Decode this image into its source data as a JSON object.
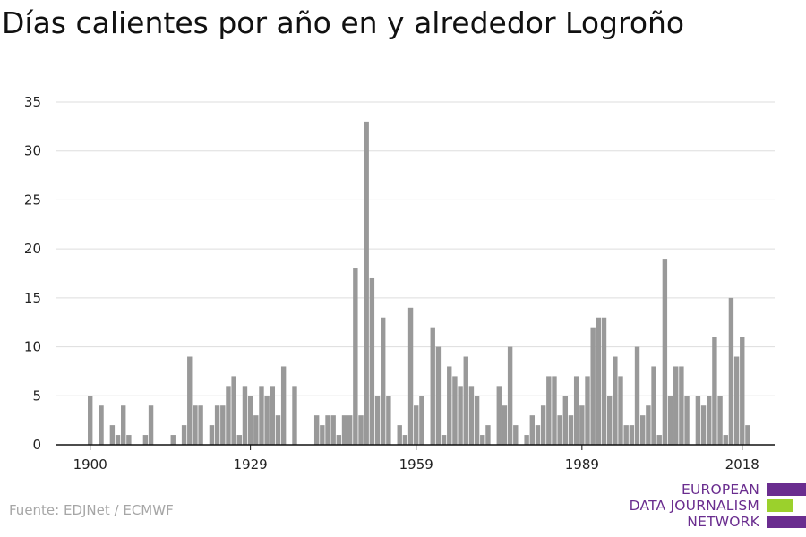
{
  "chart_data": {
    "type": "bar",
    "title": "Días calientes por año en y alrededor Logroño",
    "xlabel": "",
    "ylabel": "",
    "x_tick_labels": [
      "1900",
      "1929",
      "1959",
      "1989",
      "2018"
    ],
    "y_ticks": [
      0,
      5,
      10,
      15,
      20,
      25,
      30,
      35
    ],
    "ylim": [
      0,
      35
    ],
    "grid": true,
    "bar_color": "#999999",
    "first_year": 1900,
    "values": [
      5,
      0,
      4,
      0,
      2,
      1,
      4,
      1,
      0,
      0,
      1,
      4,
      0,
      0,
      0,
      1,
      0,
      2,
      9,
      4,
      4,
      0,
      2,
      4,
      4,
      6,
      7,
      1,
      6,
      5,
      3,
      6,
      5,
      6,
      3,
      8,
      0,
      6,
      0,
      0,
      0,
      3,
      2,
      3,
      3,
      1,
      3,
      3,
      18,
      3,
      33,
      17,
      5,
      13,
      5,
      0,
      2,
      1,
      14,
      4,
      5,
      0,
      12,
      10,
      1,
      8,
      7,
      6,
      9,
      6,
      5,
      1,
      2,
      0,
      6,
      4,
      10,
      2,
      0,
      1,
      3,
      2,
      4,
      7,
      7,
      3,
      5,
      3,
      7,
      4,
      7,
      12,
      13,
      13,
      5,
      9,
      7,
      2,
      2,
      10,
      3,
      4,
      8,
      1,
      19,
      5,
      8,
      8,
      5,
      0,
      5,
      4,
      5,
      11,
      5,
      1,
      15,
      9,
      11,
      2
    ]
  },
  "source": "Fuente: EDJNet / ECMWF",
  "logo": {
    "lines": [
      "EUROPEAN",
      "DATA JOURNALISM",
      "NETWORK"
    ],
    "text_color": "#6a2d8f",
    "bar_colors": [
      "#6a2d8f",
      "#9bd12c",
      "#6a2d8f"
    ]
  }
}
